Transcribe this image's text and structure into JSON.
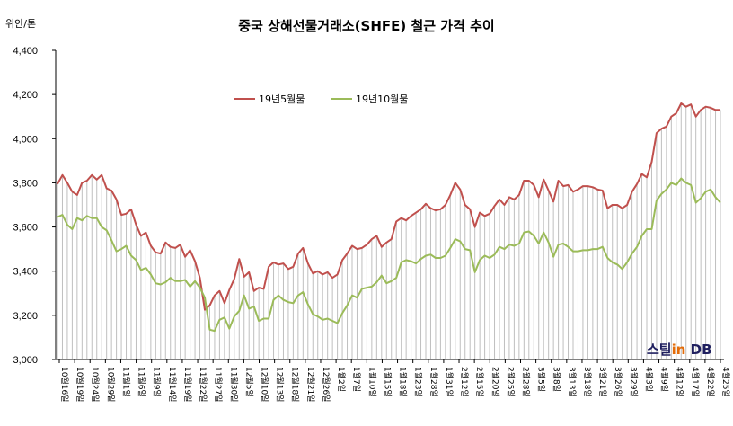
{
  "chart_data": {
    "type": "line",
    "title": "중국 상해선물거래소(SHFE) 철근 가격 추이",
    "unit_label": "위안/톤",
    "ylim": [
      3000,
      4400
    ],
    "yticks": [
      "3,000",
      "3,200",
      "3,400",
      "3,600",
      "3,800",
      "4,000",
      "4,200",
      "4,400"
    ],
    "ytick_values": [
      3000,
      3200,
      3400,
      3600,
      3800,
      4000,
      4200,
      4400
    ],
    "grid": false,
    "legend_position": "top-left",
    "colors": {
      "s1": "#c0504d",
      "s2": "#9bbb59",
      "hatch": "#bfbfbf"
    },
    "x_labels": [
      "10월16일",
      "10월19일",
      "10월24일",
      "10월29일",
      "11월1일",
      "11월6일",
      "11월9일",
      "11월14일",
      "11월19일",
      "11월22일",
      "11월27일",
      "11월30일",
      "12월5일",
      "12월10일",
      "12월13일",
      "12월18일",
      "12월21일",
      "12월26일",
      "1월2일",
      "1월7일",
      "1월10일",
      "1월15일",
      "1월18일",
      "1월23일",
      "1월28일",
      "1월31일",
      "2월12일",
      "2월15일",
      "2월20일",
      "2월25일",
      "2월28일",
      "3월5일",
      "3월8일",
      "3월13일",
      "3월18일",
      "3월21일",
      "3월26일",
      "3월29일",
      "4월3일",
      "4월9일",
      "4월12일",
      "4월17일",
      "4월22일",
      "4월25일"
    ],
    "series": [
      {
        "name": "19년5월물",
        "color": "#c0504d",
        "values": [
          3795,
          3835,
          3800,
          3760,
          3745,
          3800,
          3810,
          3835,
          3815,
          3835,
          3775,
          3765,
          3725,
          3655,
          3660,
          3680,
          3610,
          3560,
          3575,
          3515,
          3485,
          3480,
          3530,
          3510,
          3505,
          3520,
          3465,
          3495,
          3445,
          3370,
          3225,
          3245,
          3290,
          3310,
          3255,
          3315,
          3365,
          3455,
          3375,
          3395,
          3310,
          3325,
          3320,
          3420,
          3440,
          3430,
          3435,
          3410,
          3420,
          3480,
          3505,
          3435,
          3390,
          3400,
          3385,
          3395,
          3370,
          3385,
          3450,
          3480,
          3515,
          3500,
          3505,
          3520,
          3545,
          3560,
          3510,
          3530,
          3545,
          3625,
          3640,
          3630,
          3650,
          3665,
          3680,
          3705,
          3685,
          3675,
          3680,
          3700,
          3745,
          3800,
          3770,
          3700,
          3680,
          3600,
          3665,
          3650,
          3660,
          3695,
          3725,
          3700,
          3735,
          3725,
          3745,
          3810,
          3810,
          3790,
          3735,
          3815,
          3765,
          3715,
          3810,
          3785,
          3790,
          3760,
          3770,
          3785,
          3785,
          3780,
          3770,
          3765,
          3685,
          3700,
          3700,
          3685,
          3700,
          3760,
          3795,
          3840,
          3825,
          3895,
          4025,
          4045,
          4055,
          4100,
          4115,
          4160,
          4145,
          4155,
          4100,
          4130,
          4145,
          4140,
          4130,
          4130
        ]
      },
      {
        "name": "19년10월물",
        "color": "#9bbb59",
        "values": [
          3645,
          3655,
          3610,
          3590,
          3640,
          3630,
          3650,
          3640,
          3640,
          3600,
          3585,
          3540,
          3490,
          3500,
          3515,
          3470,
          3450,
          3405,
          3415,
          3385,
          3345,
          3340,
          3350,
          3370,
          3355,
          3355,
          3360,
          3330,
          3355,
          3325,
          3280,
          3135,
          3130,
          3180,
          3190,
          3140,
          3195,
          3220,
          3290,
          3230,
          3240,
          3175,
          3185,
          3185,
          3270,
          3290,
          3270,
          3260,
          3255,
          3290,
          3305,
          3250,
          3205,
          3195,
          3180,
          3185,
          3175,
          3165,
          3210,
          3245,
          3290,
          3280,
          3320,
          3325,
          3330,
          3350,
          3380,
          3345,
          3355,
          3370,
          3440,
          3450,
          3445,
          3435,
          3455,
          3470,
          3475,
          3460,
          3460,
          3470,
          3505,
          3545,
          3535,
          3500,
          3495,
          3395,
          3450,
          3470,
          3460,
          3475,
          3510,
          3500,
          3520,
          3515,
          3525,
          3575,
          3580,
          3560,
          3525,
          3575,
          3530,
          3465,
          3520,
          3525,
          3510,
          3490,
          3490,
          3495,
          3495,
          3500,
          3500,
          3510,
          3460,
          3440,
          3430,
          3410,
          3440,
          3480,
          3510,
          3560,
          3590,
          3590,
          3720,
          3750,
          3770,
          3800,
          3790,
          3820,
          3800,
          3790,
          3710,
          3730,
          3760,
          3770,
          3735,
          3710
        ]
      }
    ]
  },
  "watermark": {
    "part1": "스틸",
    "part2": "in",
    "part3": " DB",
    "color1": "#1f1f5f",
    "color2": "#e36c09"
  }
}
